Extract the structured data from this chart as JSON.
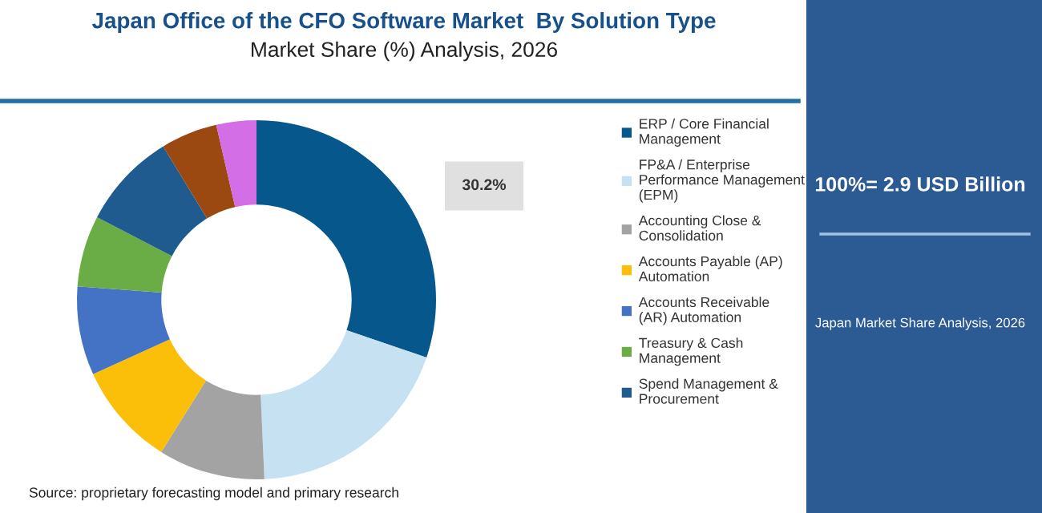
{
  "chart_data": {
    "type": "donut",
    "title": "Japan Office of the CFO Software Market  By Solution Type",
    "subtitle": "Market Share (%) Analysis, 2026",
    "categories": [
      "ERP / Core Financial Management",
      "FP&A / Enterprise Performance Management (EPM)",
      "Accounting Close & Consolidation",
      "Accounts Payable (AP) Automation",
      "Accounts Receivable (AR) Automation",
      "Treasury & Cash Management",
      "Spend Management & Procurement",
      null,
      null
    ],
    "values": [
      30.2,
      19.1,
      9.6,
      9.3,
      8.0,
      6.4,
      8.7,
      5.1,
      3.6
    ],
    "colors": [
      "#06578c",
      "#c6e2f2",
      "#a3a3a3",
      "#fbbf0a",
      "#4472c4",
      "#6aac46",
      "#1f5b8e",
      "#9c4811",
      "#d36ee6"
    ],
    "value_labels": [
      "30.2%",
      null,
      null,
      null,
      null,
      null,
      null,
      null,
      null
    ],
    "legend": "right",
    "annotations": [
      "100%= 2.9 USD Billion",
      "Japan Market Share Analysis, 2026",
      "Source: proprietary forecasting model and primary research"
    ]
  }
}
